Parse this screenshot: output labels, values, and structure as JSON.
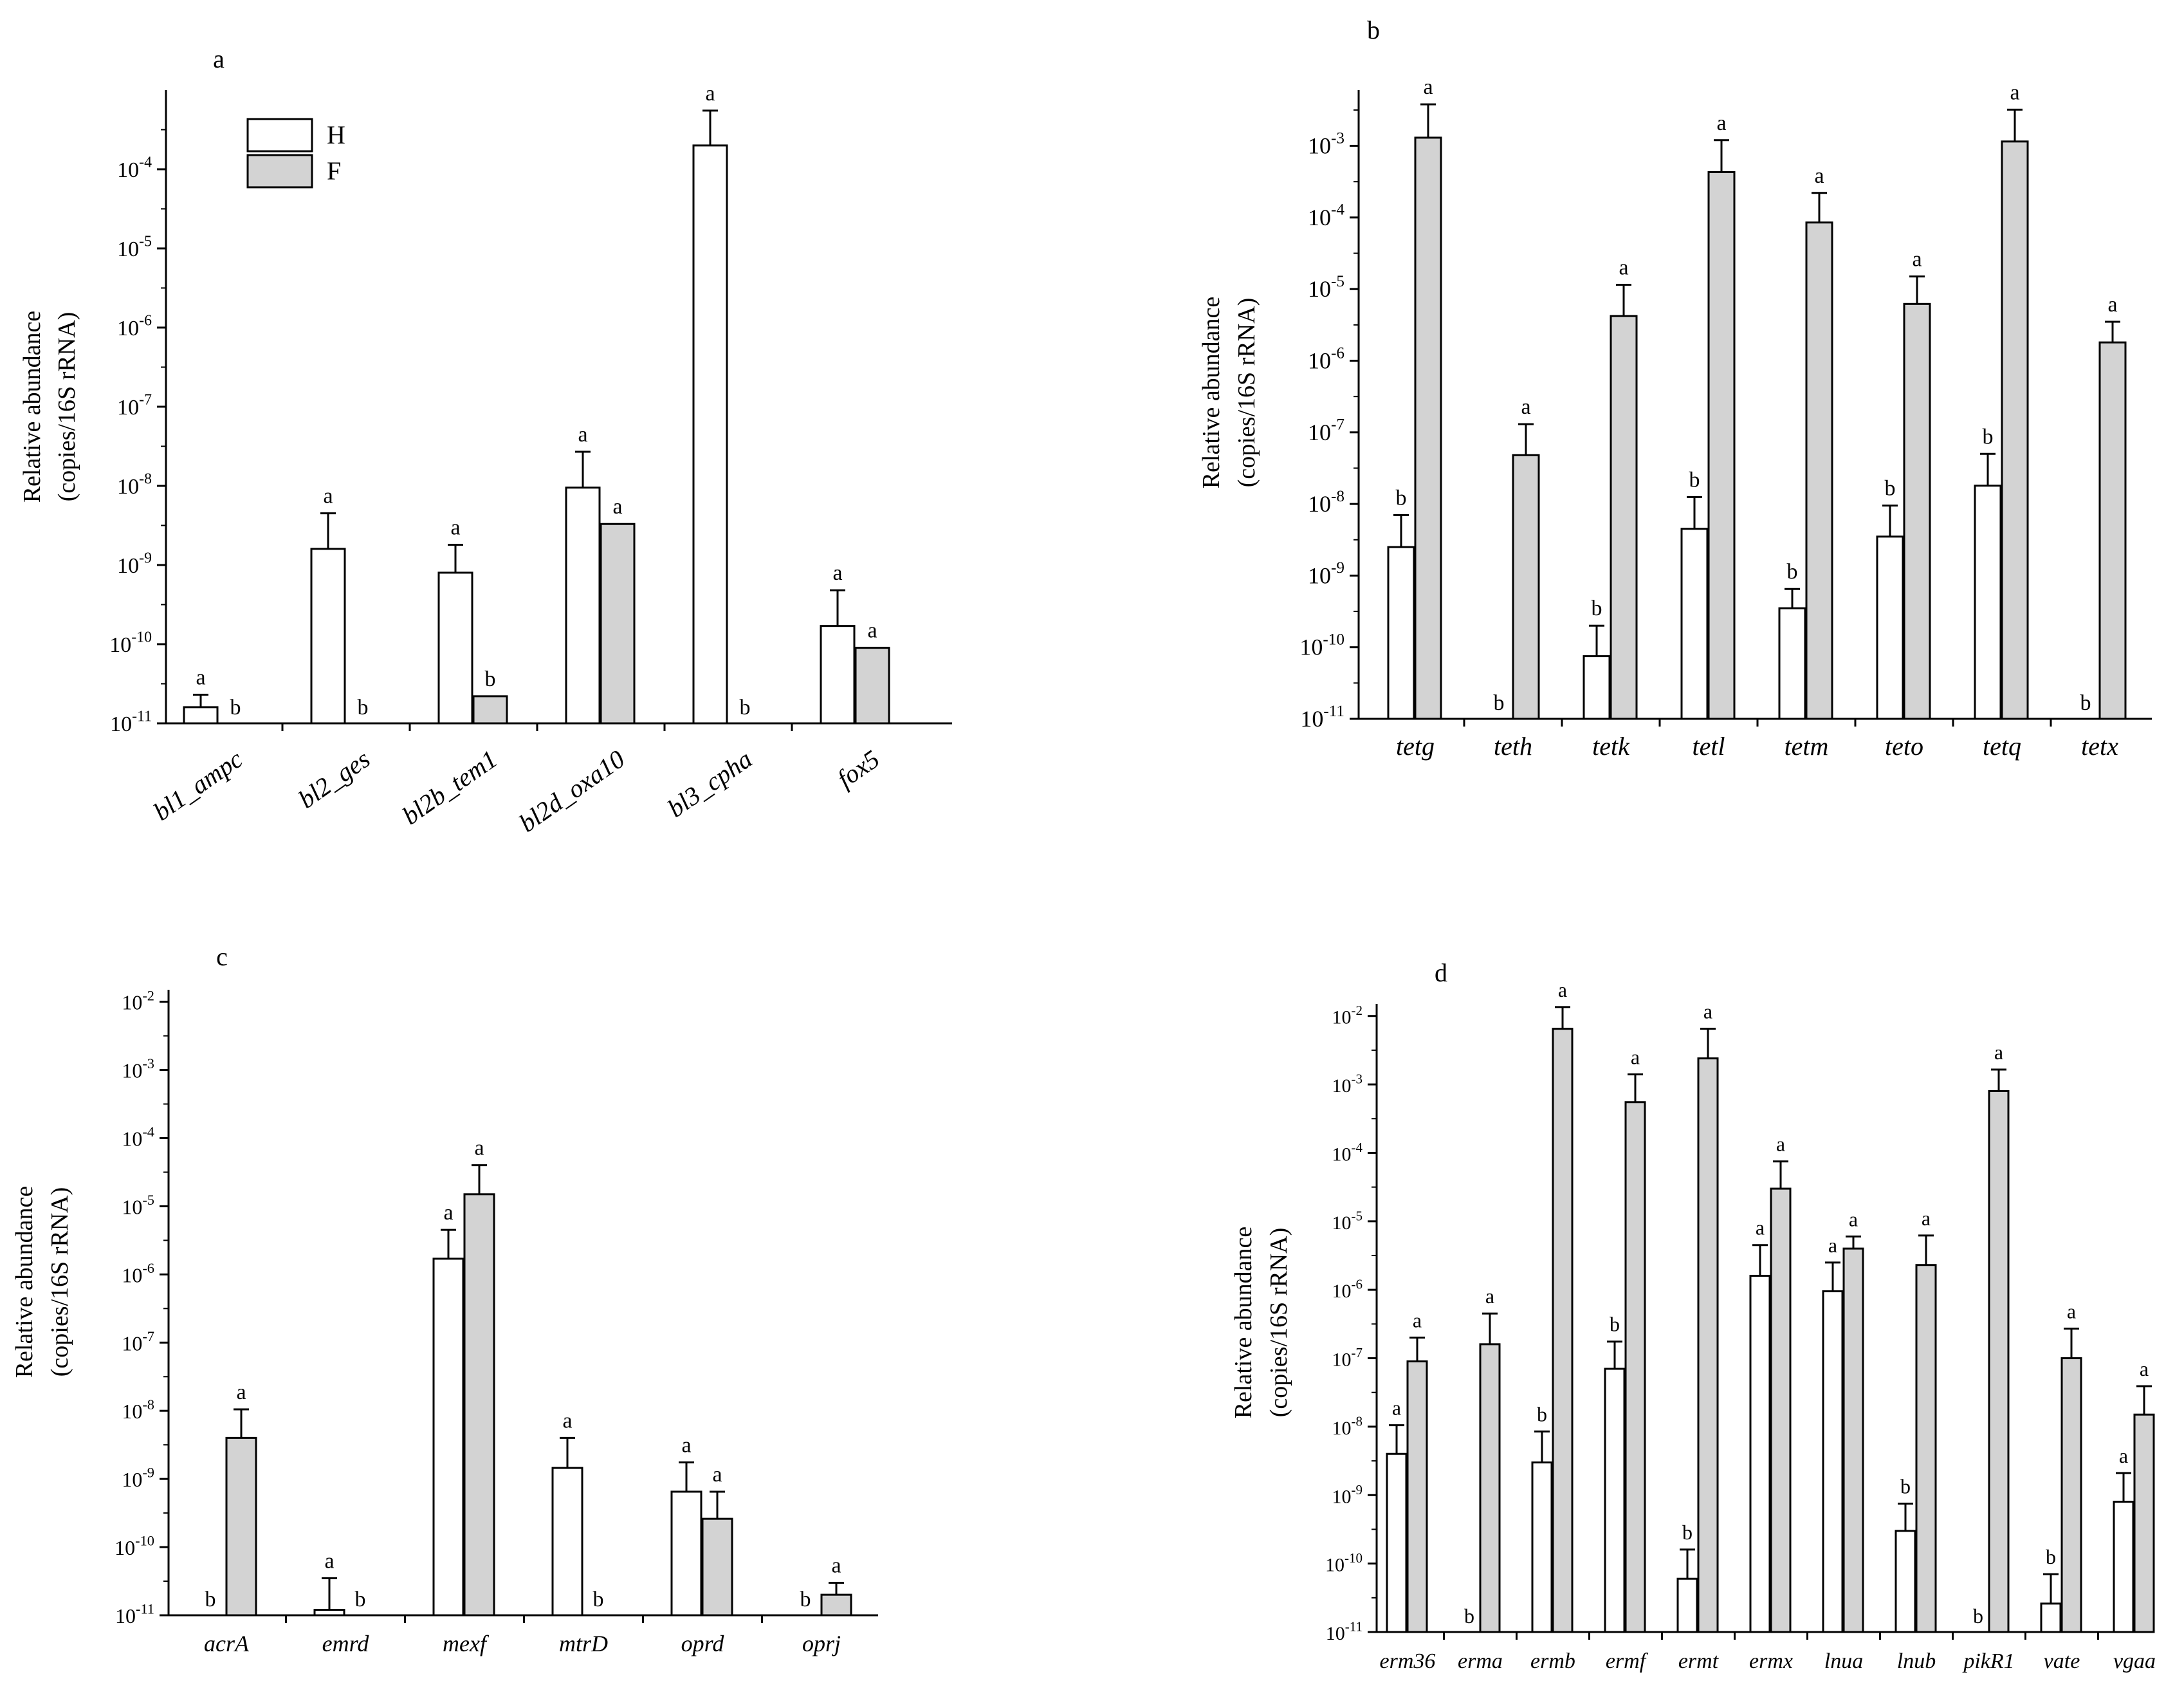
{
  "legend": {
    "placement": "top-left of panel a",
    "entries": [
      {
        "label": "H",
        "color": "#ffffff"
      },
      {
        "label": "F",
        "color": "#d3d3d3"
      }
    ]
  },
  "colors": {
    "H": "#ffffff",
    "F": "#d3d3d3",
    "axis": "#000000"
  },
  "chart_data": [
    {
      "panel": "a",
      "type": "bar",
      "yscale": "log",
      "ylim": [
        1e-11,
        0.001
      ],
      "yticks": [
        1e-11,
        1e-10,
        1e-09,
        1e-08,
        1e-07,
        1e-06,
        1e-05,
        0.0001
      ],
      "ylabel_line1": "Relative abundance",
      "ylabel_line2": "(copies/16S rRNA)",
      "xlabel": "",
      "grid": false,
      "categories": [
        "bl1_ampc",
        "bl2_ges",
        "bl2b_tem1",
        "bl2d_oxa10",
        "bl3_cpha",
        "fox5"
      ],
      "series": [
        {
          "name": "H",
          "values": [
            1.6e-11,
            1.6e-09,
            8e-10,
            9.5e-09,
            0.0002,
            1.7e-10
          ],
          "errors": [
            2.3e-11,
            4.5e-09,
            1.8e-09,
            2.7e-08,
            0.00055,
            4.8e-10
          ],
          "letters": [
            "a",
            "a",
            "a",
            "a",
            "a",
            "a"
          ]
        },
        {
          "name": "F",
          "values": [
            null,
            null,
            2.2e-11,
            3.3e-09,
            null,
            9e-11
          ],
          "errors": [
            null,
            null,
            null,
            null,
            null,
            null
          ],
          "letters": [
            "b",
            "b",
            "b",
            "a",
            "b",
            "a"
          ]
        }
      ]
    },
    {
      "panel": "b",
      "type": "bar",
      "yscale": "log",
      "ylim": [
        1e-11,
        0.006
      ],
      "yticks": [
        1e-11,
        1e-10,
        1e-09,
        1e-08,
        1e-07,
        1e-06,
        1e-05,
        0.0001,
        0.001
      ],
      "ylabel_line1": "Relative abundance",
      "ylabel_line2": "(copies/16S rRNA)",
      "xlabel": "",
      "grid": false,
      "categories": [
        "tetg",
        "teth",
        "tetk",
        "tetl",
        "tetm",
        "teto",
        "tetq",
        "tetx"
      ],
      "series": [
        {
          "name": "H",
          "values": [
            2.5e-09,
            null,
            7.5e-11,
            4.5e-09,
            3.5e-10,
            3.5e-09,
            1.8e-08,
            null
          ],
          "errors": [
            7e-09,
            null,
            2e-10,
            1.25e-08,
            6.5e-10,
            9.5e-09,
            5e-08,
            null
          ],
          "letters": [
            "b",
            "b",
            "b",
            "b",
            "b",
            "b",
            "b",
            "b"
          ]
        },
        {
          "name": "F",
          "values": [
            0.0013,
            4.8e-08,
            4.2e-06,
            0.00043,
            8.5e-05,
            6.2e-06,
            0.00115,
            1.8e-06
          ],
          "errors": [
            0.0038,
            1.3e-07,
            1.15e-05,
            0.0012,
            0.00022,
            1.5e-05,
            0.0032,
            3.5e-06
          ],
          "letters": [
            "a",
            "a",
            "a",
            "a",
            "a",
            "a",
            "a",
            "a"
          ]
        }
      ]
    },
    {
      "panel": "c",
      "type": "bar",
      "yscale": "log",
      "ylim": [
        1e-11,
        0.015
      ],
      "yticks": [
        1e-11,
        1e-10,
        1e-09,
        1e-08,
        1e-07,
        1e-06,
        1e-05,
        0.0001,
        0.001,
        0.01
      ],
      "ylabel_line1": "Relative abundance",
      "ylabel_line2": "(copies/16S rRNA)",
      "xlabel": "",
      "grid": false,
      "categories": [
        "acrA",
        "emrd",
        "mexf",
        "mtrD",
        "oprd",
        "oprj"
      ],
      "series": [
        {
          "name": "H",
          "values": [
            null,
            1.2e-11,
            1.7e-06,
            1.45e-09,
            6.5e-10,
            null
          ],
          "errors": [
            null,
            3.5e-11,
            4.5e-06,
            4e-09,
            1.75e-09,
            null
          ],
          "letters": [
            "b",
            "a",
            "a",
            "a",
            "a",
            "b"
          ]
        },
        {
          "name": "F",
          "values": [
            4e-09,
            null,
            1.5e-05,
            null,
            2.6e-10,
            2e-11
          ],
          "errors": [
            1.05e-08,
            null,
            4e-05,
            null,
            6.5e-10,
            3e-11
          ],
          "letters": [
            "a",
            "b",
            "a",
            "b",
            "a",
            "a"
          ]
        }
      ]
    },
    {
      "panel": "d",
      "type": "bar",
      "yscale": "log",
      "ylim": [
        1e-11,
        0.015
      ],
      "yticks": [
        1e-11,
        1e-10,
        1e-09,
        1e-08,
        1e-07,
        1e-06,
        1e-05,
        0.0001,
        0.001,
        0.01
      ],
      "ylabel_line1": "Relative abundance",
      "ylabel_line2": "(copies/16S rRNA)",
      "xlabel": "",
      "grid": false,
      "categories": [
        "erm36",
        "erma",
        "ermb",
        "ermf",
        "ermt",
        "ermx",
        "lnua",
        "lnub",
        "pikR1",
        "vate",
        "vgaa"
      ],
      "series": [
        {
          "name": "H",
          "values": [
            4e-09,
            null,
            3e-09,
            7e-08,
            6e-11,
            1.6e-06,
            9.5e-07,
            3e-10,
            null,
            2.6e-11,
            8e-10
          ],
          "errors": [
            1.05e-08,
            null,
            8.5e-09,
            1.75e-07,
            1.6e-10,
            4.5e-06,
            2.5e-06,
            7.5e-10,
            null,
            7e-11,
            2.1e-09
          ],
          "letters": [
            "a",
            "b",
            "b",
            "b",
            "b",
            "a",
            "a",
            "b",
            "b",
            "b",
            "a"
          ]
        },
        {
          "name": "F",
          "values": [
            9e-08,
            1.6e-07,
            0.0065,
            0.00055,
            0.0024,
            3e-05,
            4e-06,
            2.3e-06,
            0.0008,
            1e-07,
            1.5e-08
          ],
          "errors": [
            2e-07,
            4.5e-07,
            0.0135,
            0.0014,
            0.0065,
            7.5e-05,
            6e-06,
            6.2e-06,
            0.00165,
            2.7e-07,
            3.9e-08
          ],
          "letters": [
            "a",
            "a",
            "a",
            "a",
            "a",
            "a",
            "a",
            "a",
            "a",
            "a",
            "a"
          ]
        }
      ]
    }
  ]
}
